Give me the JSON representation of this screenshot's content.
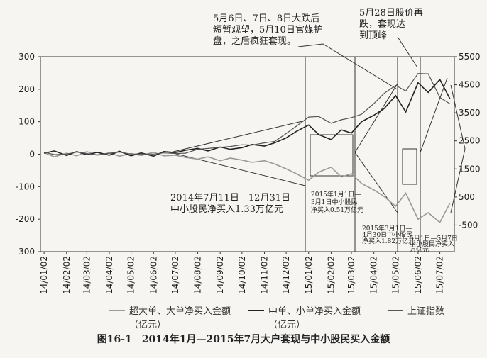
{
  "chart_data": {
    "type": "line",
    "title": "图16-1　2014年1月—2015年7月大户套现与中小股民买入金额",
    "x": [
      "14/01/02",
      "14/01/16",
      "14/02/02",
      "14/02/16",
      "14/03/02",
      "14/03/16",
      "14/04/02",
      "14/04/16",
      "14/05/02",
      "14/05/16",
      "14/06/02",
      "14/06/16",
      "14/07/02",
      "14/07/16",
      "14/08/02",
      "14/08/16",
      "14/09/02",
      "14/09/16",
      "14/10/02",
      "14/10/16",
      "14/11/02",
      "14/11/16",
      "14/12/02",
      "14/12/16",
      "15/01/02",
      "15/01/16",
      "15/02/02",
      "15/02/16",
      "15/03/02",
      "15/03/16",
      "15/04/02",
      "15/04/16",
      "15/05/02",
      "15/05/16",
      "15/06/02",
      "15/06/16",
      "15/07/02",
      "15/07/16"
    ],
    "xlim": [
      "13/12/28",
      "15/07/22"
    ],
    "xticks": [
      "14/01/02",
      "14/02/02",
      "14/03/02",
      "14/04/02",
      "14/05/02",
      "14/06/02",
      "14/07/02",
      "14/08/02",
      "14/09/02",
      "14/10/02",
      "14/11/02",
      "14/12/02",
      "15/01/02",
      "15/02/02",
      "15/03/02",
      "15/04/02",
      "15/05/02",
      "15/06/02",
      "15/07/02"
    ],
    "ylim": [
      -300,
      300
    ],
    "yticks": [
      -300,
      -200,
      -100,
      0,
      100,
      200,
      300
    ],
    "y2lim": [
      -1450,
      5500
    ],
    "y2ticks": [
      -500,
      500,
      1500,
      2500,
      3500,
      4500,
      5500
    ],
    "legend": "bottom",
    "series": [
      {
        "name": "超大单、大单净买入金额（亿元）",
        "color": "#9a9a9a",
        "values": [
          5,
          -8,
          3,
          -5,
          8,
          -3,
          4,
          -6,
          2,
          -4,
          6,
          -5,
          -3,
          -10,
          -15,
          -8,
          -20,
          -12,
          -18,
          -25,
          -20,
          -30,
          -45,
          -60,
          -80,
          -55,
          -40,
          -70,
          -60,
          -90,
          -110,
          -130,
          -160,
          -120,
          -200,
          -180,
          -210,
          -150
        ]
      },
      {
        "name": "中单、小单净买入金额（亿元）",
        "color": "#222222",
        "values": [
          3,
          10,
          -4,
          8,
          -2,
          6,
          -3,
          9,
          -5,
          4,
          -6,
          8,
          5,
          12,
          18,
          10,
          22,
          15,
          20,
          30,
          25,
          35,
          50,
          70,
          90,
          60,
          45,
          75,
          65,
          100,
          120,
          140,
          180,
          130,
          220,
          190,
          230,
          170
        ]
      },
      {
        "name": "上证指数",
        "color": "#555555",
        "axis": "y2",
        "values": [
          2100,
          2010,
          2030,
          2100,
          2050,
          2000,
          2060,
          2100,
          2030,
          2030,
          2030,
          2070,
          2050,
          2060,
          2200,
          2230,
          2270,
          2300,
          2360,
          2350,
          2430,
          2480,
          2760,
          3020,
          3350,
          3370,
          3130,
          3250,
          3330,
          3450,
          3830,
          4190,
          4480,
          4280,
          4900,
          4890,
          4050,
          3820
        ]
      }
    ],
    "annotations": [
      {
        "lines": [
          "5月6日、7日、8日大跌后",
          "短暂观望，5月10日官媒护",
          "盘，之后疯狂套现。"
        ]
      },
      {
        "lines": [
          "5月28日股价再",
          "跌，套现达",
          "到顶峰"
        ]
      },
      {
        "lines": [
          "2014年7月11日—12月31日",
          "中小股民净买入1.33万亿元"
        ]
      },
      {
        "lines": [
          "2015年1月1日—",
          "3月1日中小股民",
          "净买入0.51万亿元"
        ]
      },
      {
        "lines": [
          "2015年3月1日—",
          "4月30日中小股民",
          "净买入1.82万亿元"
        ]
      },
      {
        "lines": [
          "5月1日—5月7日",
          "中小股民净买入",
          "万亿元"
        ]
      }
    ]
  }
}
